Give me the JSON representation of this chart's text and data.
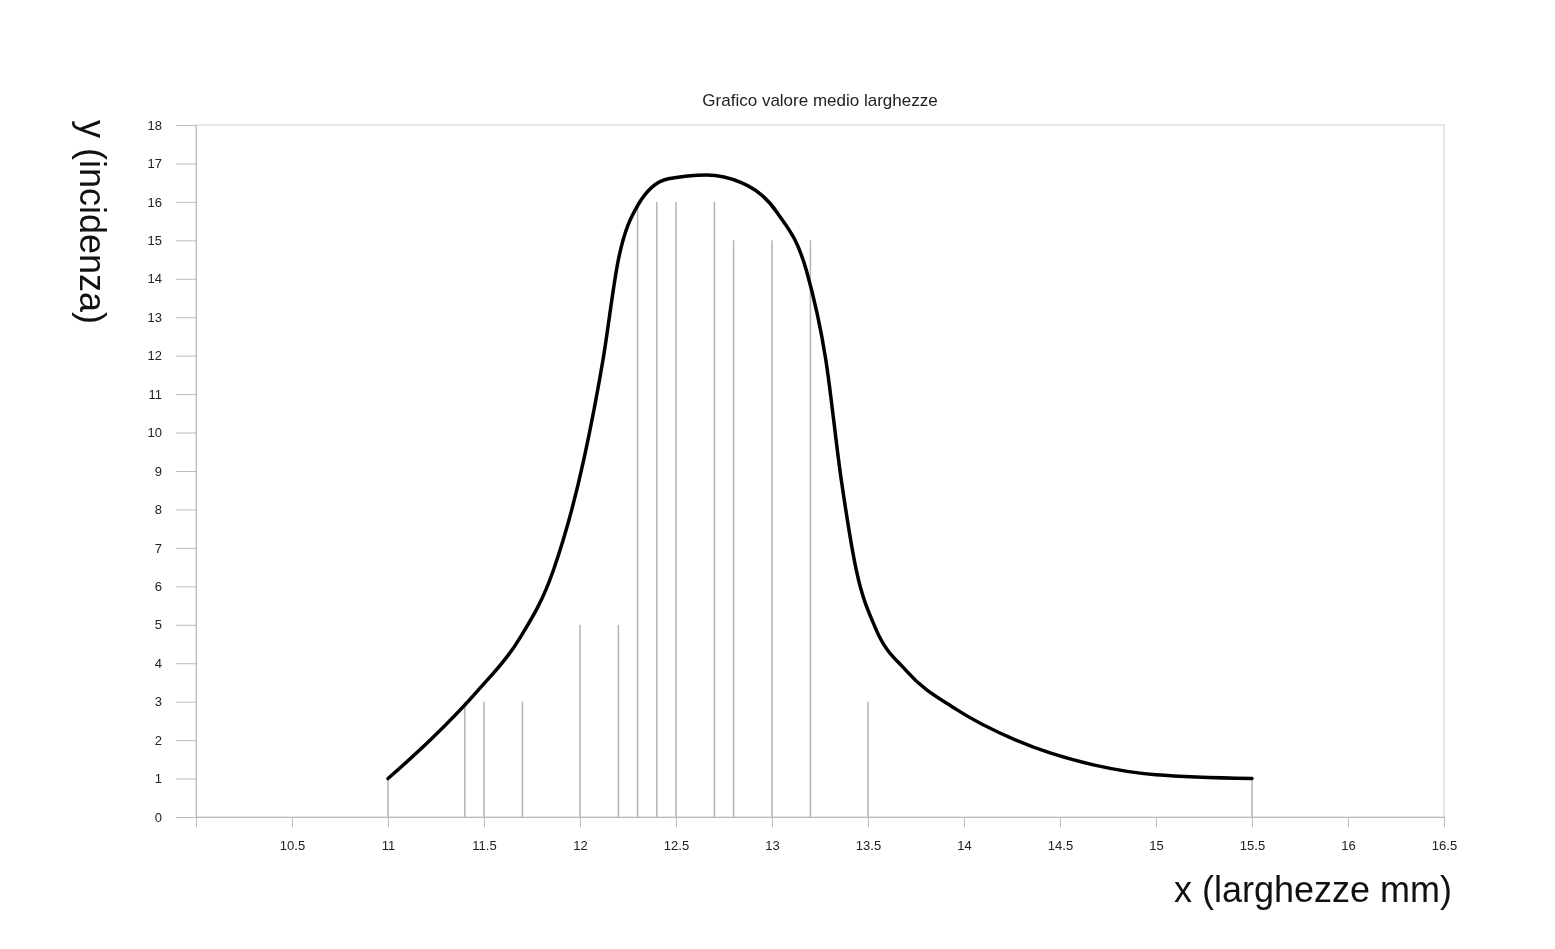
{
  "chart_data": {
    "type": "line",
    "title": "Grafico valore medio larghezze",
    "xlabel": "x (larghezze mm)",
    "ylabel": "y (incidenza)",
    "xlim": [
      10,
      16.5
    ],
    "xticks": [
      10.5,
      11,
      11.5,
      12,
      12.5,
      13,
      13.5,
      14,
      14.5,
      15,
      15.5,
      16,
      16.5
    ],
    "ylim": [
      0,
      18
    ],
    "yticks": [
      0,
      1,
      2,
      3,
      4,
      5,
      6,
      7,
      8,
      9,
      10,
      11,
      12,
      13,
      14,
      15,
      16,
      17,
      18
    ],
    "marker": "none",
    "line_style": "solid",
    "series": [
      {
        "type": "bar",
        "color": "#b4b4b4",
        "x": [
          11,
          11.4,
          11.5,
          11.7,
          12,
          12.2,
          12.3,
          12.4,
          12.5,
          12.7,
          12.8,
          13,
          13.2,
          13.5,
          15.5
        ],
        "values": [
          1,
          3,
          3,
          3,
          5,
          5,
          16,
          16,
          16,
          16,
          15,
          15,
          15,
          3,
          1
        ]
      },
      {
        "color": "#000000",
        "x": [
          11,
          11.22,
          11.47,
          11.68,
          11.86,
          12.02,
          12.12,
          12.2,
          12.3,
          12.46,
          12.66,
          12.84,
          13.03,
          13.18,
          13.28,
          13.36,
          13.44,
          13.54,
          13.7,
          13.96,
          14.27,
          14.68,
          15,
          15.5
        ],
        "values": [
          1,
          2,
          3.3,
          4.6,
          6.4,
          9.3,
          11.9,
          14.5,
          15.9,
          16.6,
          16.7,
          16.5,
          15.7,
          14.2,
          11.9,
          8.8,
          6.4,
          4.9,
          3.8,
          2.8,
          2,
          1.35,
          1.1,
          1
        ]
      }
    ]
  }
}
